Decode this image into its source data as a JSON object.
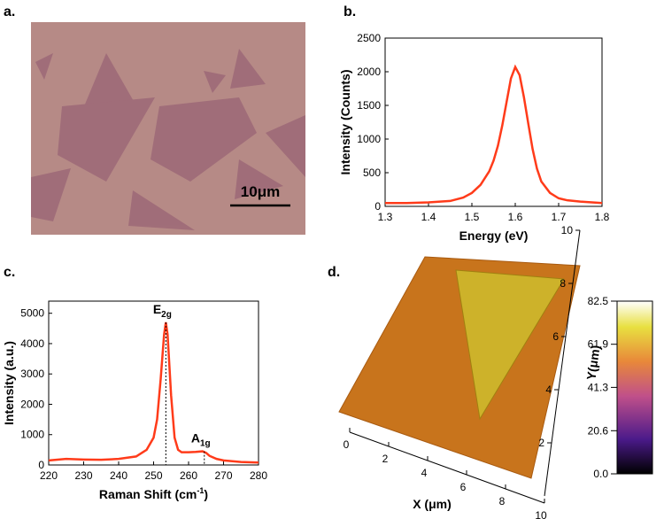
{
  "panel_labels": [
    "a.",
    "b.",
    "c.",
    "d."
  ],
  "image_a": {
    "scale_bar": "10μm"
  },
  "chart_data": [
    {
      "type": "line",
      "color": "#ff3b1a",
      "x": [
        1.3,
        1.35,
        1.4,
        1.45,
        1.48,
        1.5,
        1.52,
        1.54,
        1.55,
        1.56,
        1.57,
        1.58,
        1.59,
        1.6,
        1.61,
        1.62,
        1.63,
        1.64,
        1.65,
        1.66,
        1.68,
        1.7,
        1.72,
        1.75,
        1.8
      ],
      "values": [
        50,
        50,
        60,
        80,
        130,
        200,
        320,
        520,
        680,
        900,
        1200,
        1550,
        1900,
        2070,
        1950,
        1620,
        1230,
        850,
        560,
        370,
        200,
        120,
        90,
        70,
        50
      ],
      "xlim": [
        1.3,
        1.8
      ],
      "xticks": [
        1.3,
        1.4,
        1.5,
        1.6,
        1.7,
        1.8
      ],
      "ylim": [
        0,
        2500
      ],
      "yticks": [
        0,
        500,
        1000,
        1500,
        2000,
        2500
      ],
      "xlabel": "Energy (eV)",
      "ylabel": "Intensity (Counts)"
    },
    {
      "type": "line",
      "color": "#ff3b1a",
      "x": [
        220,
        225,
        230,
        235,
        240,
        245,
        248,
        250,
        251,
        252,
        253,
        253.5,
        254,
        255,
        256,
        257,
        258,
        260,
        262,
        264,
        265,
        266,
        268,
        270,
        275,
        280
      ],
      "values": [
        150,
        200,
        180,
        170,
        200,
        280,
        500,
        900,
        1500,
        2800,
        4300,
        4700,
        4300,
        2300,
        900,
        500,
        420,
        420,
        430,
        450,
        400,
        300,
        200,
        150,
        100,
        80
      ],
      "xlim": [
        220,
        280
      ],
      "xticks": [
        220,
        230,
        240,
        250,
        260,
        270,
        280
      ],
      "ylim": [
        0,
        5400
      ],
      "yticks": [
        0,
        1000,
        2000,
        3000,
        4000,
        5000
      ],
      "xlabel": {
        "text": "Raman Shift (cm",
        "sup": "-1",
        "end": ")"
      },
      "ylabel": "Intensity (a.u.)",
      "peaks": [
        {
          "x": 253.5,
          "y": 4700,
          "label": "E",
          "sub": "2g"
        },
        {
          "x": 264.5,
          "y": 450,
          "label": "A",
          "sub": "1g"
        }
      ]
    }
  ],
  "image_d": {
    "xlabel": "X (μm)",
    "ylabel": "Y(μm)",
    "xticks": [
      0,
      2,
      4,
      6,
      8,
      10
    ],
    "yticks": [
      2,
      4,
      6,
      8,
      10
    ],
    "yaxis_lim": [
      0,
      10
    ],
    "colorbar_lim": [
      0,
      82.5
    ],
    "colorbar_ticks": [
      {
        "value": 0,
        "label": "0.0"
      },
      20.6,
      41.3,
      61.9,
      82.5
    ]
  }
}
